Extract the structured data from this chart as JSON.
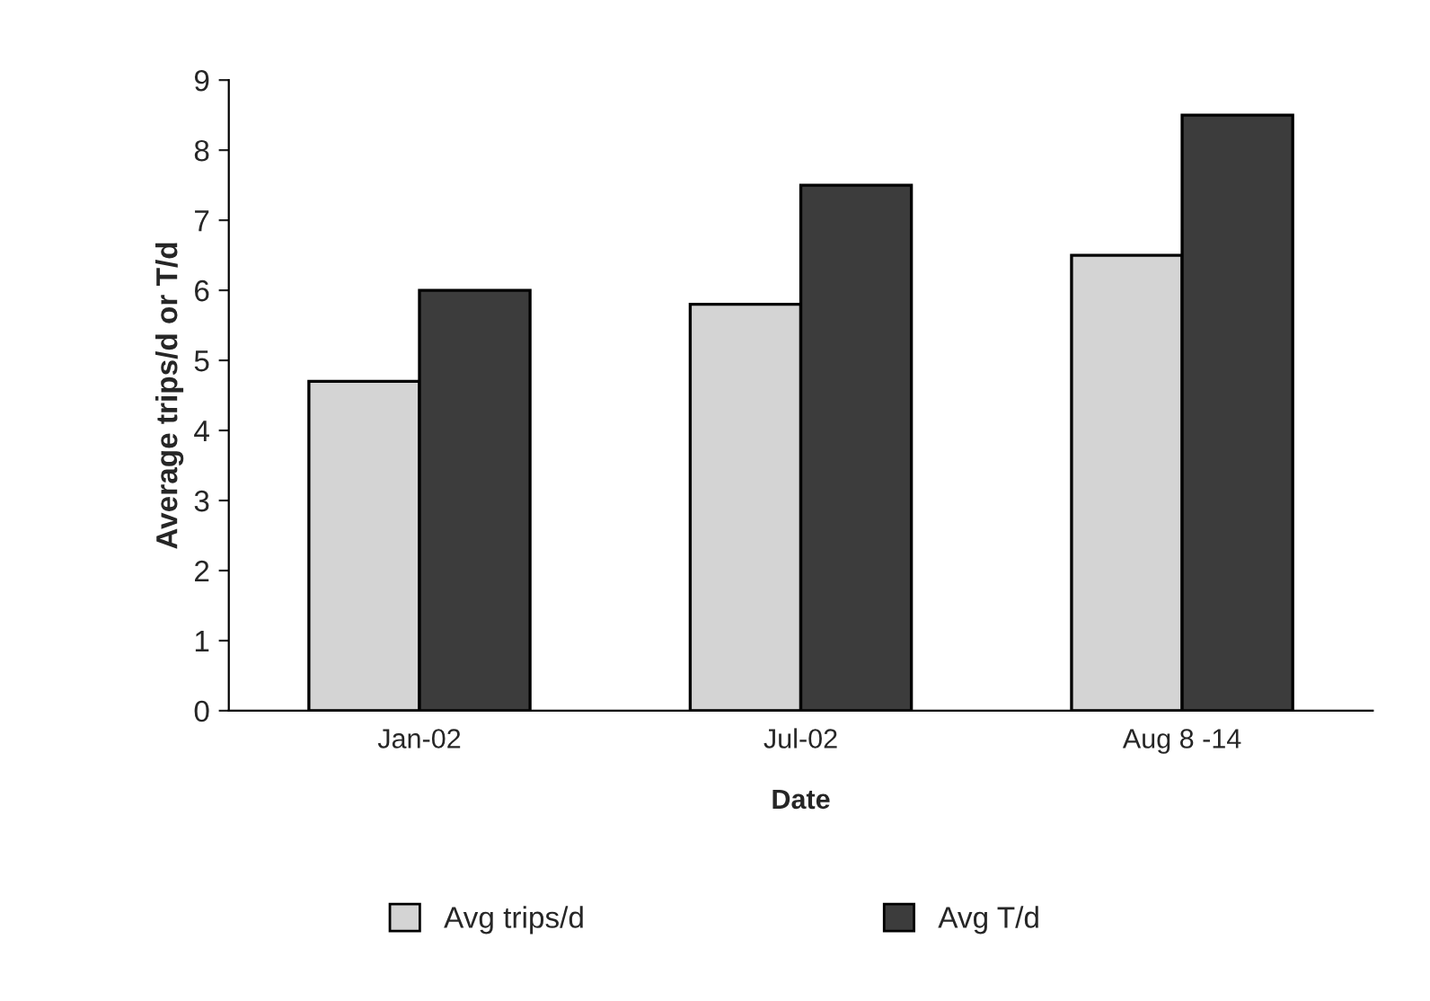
{
  "chart_data": {
    "type": "bar",
    "xlabel": "Date",
    "ylabel": "Average trips/d or T/d",
    "categories": [
      "Jan-02",
      "Jul-02",
      "Aug 8 -14"
    ],
    "series": [
      {
        "name": "Avg trips/d",
        "color": "#d4d4d4",
        "values": [
          4.7,
          5.8,
          6.5
        ]
      },
      {
        "name": "Avg T/d",
        "color": "#3c3c3c",
        "values": [
          6.0,
          7.5,
          8.5
        ]
      }
    ],
    "ylim": [
      0,
      9
    ],
    "yticks": [
      0,
      1,
      2,
      3,
      4,
      5,
      6,
      7,
      8,
      9
    ],
    "grid": false,
    "legend": "bottom"
  }
}
